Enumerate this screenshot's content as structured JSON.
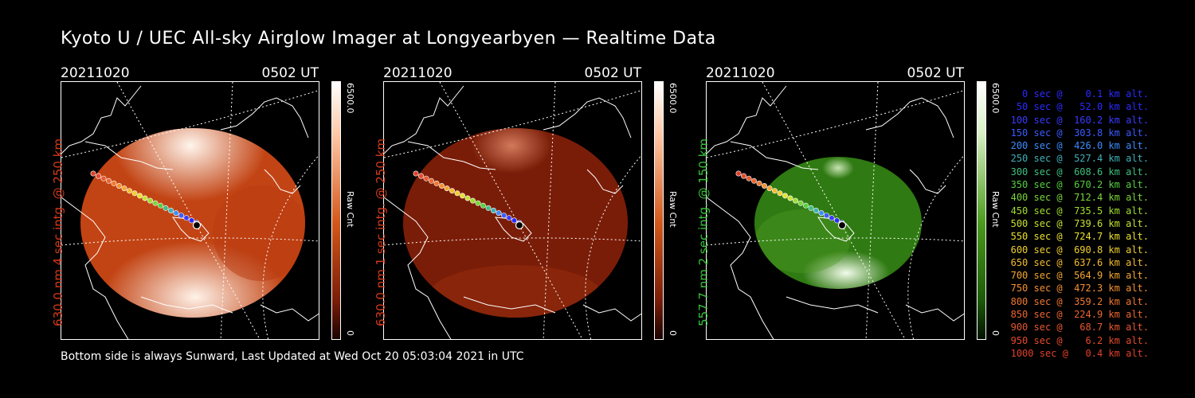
{
  "title": "Kyoto U / UEC All-sky Airglow Imager at Longyearbyen — Realtime Data",
  "footer": "Bottom side is always Sunward, Last Updated at Wed Oct 20 05:03:04 2021 in UTC",
  "panels": [
    {
      "date": "20211020",
      "time": "0502 UT",
      "side_label": "630.0 nm 4 sec intg. @ 250 km",
      "label_color": "#d33a1a",
      "colorbar": {
        "max": "6500.0",
        "unit": "Raw Cnt",
        "min": "0",
        "color_top": "#ffffff",
        "color_mid": "#d3571a",
        "color_bot": "#3a0600"
      },
      "image": {
        "base": "#c24414",
        "bright": "#fff1e6",
        "ring": "#ad3c10"
      }
    },
    {
      "date": "20211020",
      "time": "0502 UT",
      "side_label": "630.0 nm 1 sec intg. @ 250 km",
      "label_color": "#d33a1a",
      "colorbar": {
        "max": "6500.0",
        "unit": "Raw Cnt",
        "min": "0",
        "color_top": "#ffffff",
        "color_mid": "#d3571a",
        "color_bot": "#3a0600"
      },
      "image": {
        "base": "#7a1d08",
        "bright": "#ffd2b8",
        "ring": "#6a1806"
      }
    },
    {
      "date": "20211020",
      "time": "0502 UT",
      "side_label": "557.7 nm 2 sec intg. @ 150 km",
      "label_color": "#39c23a",
      "colorbar": {
        "max": "6500.0",
        "unit": "Raw Cnt",
        "min": "0",
        "color_top": "#ffffff",
        "color_mid": "#4a9a1c",
        "color_bot": "#062a00"
      },
      "image": {
        "base": "#2f7a12",
        "bright": "#e8f8de",
        "ring": "#245f0d"
      }
    }
  ],
  "legend": [
    {
      "text": "  0 sec @    0.1 km alt.",
      "color": "#2a2aff"
    },
    {
      "text": " 50 sec @   52.0 km alt.",
      "color": "#2a2aff"
    },
    {
      "text": "100 sec @  160.2 km alt.",
      "color": "#3a3aff"
    },
    {
      "text": "150 sec @  303.8 km alt.",
      "color": "#3a5cff"
    },
    {
      "text": "200 sec @  426.0 km alt.",
      "color": "#3a8cff"
    },
    {
      "text": "250 sec @  527.4 km alt.",
      "color": "#3fb0b8"
    },
    {
      "text": "300 sec @  608.6 km alt.",
      "color": "#3fc080"
    },
    {
      "text": "350 sec @  670.2 km alt.",
      "color": "#55d040"
    },
    {
      "text": "400 sec @  712.4 km alt.",
      "color": "#7ad63a"
    },
    {
      "text": "450 sec @  735.5 km alt.",
      "color": "#a0dc30"
    },
    {
      "text": "500 sec @  739.6 km alt.",
      "color": "#c8e030"
    },
    {
      "text": "550 sec @  724.7 km alt.",
      "color": "#e8e030"
    },
    {
      "text": "600 sec @  690.8 km alt.",
      "color": "#f0d030"
    },
    {
      "text": "650 sec @  637.6 km alt.",
      "color": "#f4bc30"
    },
    {
      "text": "700 sec @  564.9 km alt.",
      "color": "#f4a830"
    },
    {
      "text": "750 sec @  472.3 km alt.",
      "color": "#f49030"
    },
    {
      "text": "800 sec @  359.2 km alt.",
      "color": "#f07830"
    },
    {
      "text": "850 sec @  224.9 km alt.",
      "color": "#ec6630"
    },
    {
      "text": "900 sec @   68.7 km alt.",
      "color": "#e85830"
    },
    {
      "text": "950 sec @    6.2 km alt.",
      "color": "#e44a2c"
    },
    {
      "text": "1000 sec @   0.4 km alt.",
      "color": "#e0402a"
    }
  ]
}
